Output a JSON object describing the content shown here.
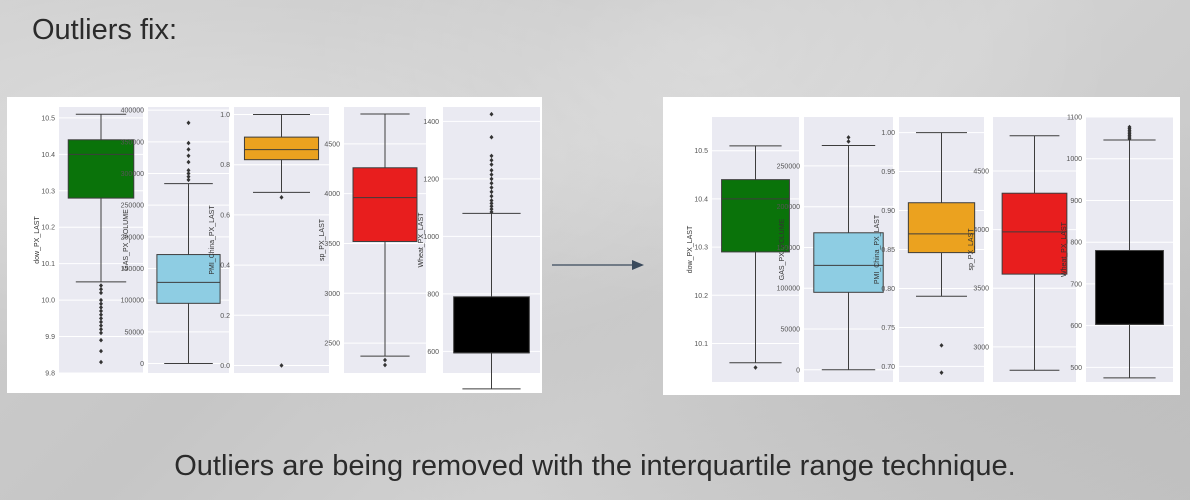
{
  "slide": {
    "title": "Outliers fix:",
    "caption": "Outliers are being removed with the interquartile range technique."
  },
  "colors": {
    "plot_background": "#eaeaf2",
    "grid": "#ffffff",
    "box_edge": "#3d3d3d",
    "arrow": "#3a4a5c"
  },
  "chart_data": [
    {
      "type": "boxplot",
      "subplots": [
        {
          "ylabel": "dow_PX_LAST",
          "color": "#0a730a",
          "ylim": [
            9.8,
            10.53
          ],
          "ticks": [
            {
              "v": 9.8,
              "t": "9.8"
            },
            {
              "v": 9.9,
              "t": "9.9"
            },
            {
              "v": 10.0,
              "t": "10.0"
            },
            {
              "v": 10.1,
              "t": "10.1"
            },
            {
              "v": 10.2,
              "t": "10.2"
            },
            {
              "v": 10.3,
              "t": "10.3"
            },
            {
              "v": 10.4,
              "t": "10.4"
            },
            {
              "v": 10.5,
              "t": "10.5"
            }
          ],
          "whisker_low": 10.05,
          "q1": 10.28,
          "median": 10.4,
          "q3": 10.44,
          "whisker_high": 10.51,
          "outliers": [
            10.04,
            10.03,
            10.02,
            10.0,
            9.99,
            9.98,
            9.97,
            9.96,
            9.95,
            9.94,
            9.93,
            9.92,
            9.91,
            9.89,
            9.86,
            9.83
          ]
        },
        {
          "ylabel": "GAS_PX_VOLUME",
          "color": "#8ecde3",
          "ylim": [
            -15000,
            405000
          ],
          "ticks": [
            {
              "v": 0,
              "t": "0"
            },
            {
              "v": 50000,
              "t": "50000"
            },
            {
              "v": 100000,
              "t": "100000"
            },
            {
              "v": 150000,
              "t": "150000"
            },
            {
              "v": 200000,
              "t": "200000"
            },
            {
              "v": 250000,
              "t": "250000"
            },
            {
              "v": 300000,
              "t": "300000"
            },
            {
              "v": 350000,
              "t": "350000"
            },
            {
              "v": 400000,
              "t": "400000"
            }
          ],
          "whisker_low": 0,
          "q1": 95000,
          "median": 128000,
          "q3": 172000,
          "whisker_high": 284000,
          "outliers": [
            290000,
            295000,
            300000,
            305000,
            318000,
            328000,
            338000,
            348000,
            380000
          ]
        },
        {
          "ylabel": "PMI_China_PX_LAST",
          "color": "#eba21f",
          "ylim": [
            -0.03,
            1.03
          ],
          "ticks": [
            {
              "v": 0.0,
              "t": "0.0"
            },
            {
              "v": 0.2,
              "t": "0.2"
            },
            {
              "v": 0.4,
              "t": "0.4"
            },
            {
              "v": 0.6,
              "t": "0.6"
            },
            {
              "v": 0.8,
              "t": "0.8"
            },
            {
              "v": 1.0,
              "t": "1.0"
            }
          ],
          "whisker_low": 0.69,
          "q1": 0.82,
          "median": 0.86,
          "q3": 0.91,
          "whisker_high": 1.0,
          "outliers": [
            0.67,
            0.0
          ]
        },
        {
          "ylabel": "sp_PX_LAST",
          "color": "#e81e1e",
          "ylim": [
            2200,
            4870
          ],
          "ticks": [
            {
              "v": 2500,
              "t": "2500"
            },
            {
              "v": 3000,
              "t": "3000"
            },
            {
              "v": 3500,
              "t": "3500"
            },
            {
              "v": 4000,
              "t": "4000"
            },
            {
              "v": 4500,
              "t": "4500"
            }
          ],
          "whisker_low": 2370,
          "q1": 3520,
          "median": 3960,
          "q3": 4260,
          "whisker_high": 4800,
          "outliers": [
            2330,
            2280
          ]
        },
        {
          "ylabel": "Wheat_PX_LAST",
          "color": "#000000",
          "ylim": [
            525,
            1450
          ],
          "ticks": [
            {
              "v": 600,
              "t": "600"
            },
            {
              "v": 800,
              "t": "800"
            },
            {
              "v": 1000,
              "t": "1000"
            },
            {
              "v": 1200,
              "t": "1200"
            },
            {
              "v": 1400,
              "t": "1400"
            }
          ],
          "whisker_low": 470,
          "q1": 595,
          "median": 595,
          "q3": 790,
          "whisker_high": 1080,
          "outliers": [
            1085,
            1095,
            1105,
            1115,
            1125,
            1140,
            1155,
            1170,
            1185,
            1200,
            1215,
            1230,
            1250,
            1265,
            1280,
            1345,
            1425
          ]
        }
      ]
    },
    {
      "type": "boxplot",
      "subplots": [
        {
          "ylabel": "dow_PX_LAST",
          "color": "#0a730a",
          "ylim": [
            10.02,
            10.57
          ],
          "ticks": [
            {
              "v": 10.1,
              "t": "10.1"
            },
            {
              "v": 10.2,
              "t": "10.2"
            },
            {
              "v": 10.3,
              "t": "10.3"
            },
            {
              "v": 10.4,
              "t": "10.4"
            },
            {
              "v": 10.5,
              "t": "10.5"
            }
          ],
          "whisker_low": 10.06,
          "q1": 10.29,
          "median": 10.4,
          "q3": 10.44,
          "whisker_high": 10.51,
          "outliers": [
            10.05
          ]
        },
        {
          "ylabel": "GAS_PX_VOLUME",
          "color": "#8ecde3",
          "ylim": [
            -15000,
            310000
          ],
          "ticks": [
            {
              "v": 0,
              "t": "0"
            },
            {
              "v": 50000,
              "t": "50000"
            },
            {
              "v": 100000,
              "t": "100000"
            },
            {
              "v": 150000,
              "t": "150000"
            },
            {
              "v": 200000,
              "t": "200000"
            },
            {
              "v": 250000,
              "t": "250000"
            }
          ],
          "whisker_low": 0,
          "q1": 95000,
          "median": 128000,
          "q3": 168000,
          "whisker_high": 275000,
          "outliers": [
            280000,
            285000
          ]
        },
        {
          "ylabel": "PMI_China_PX_LAST",
          "color": "#eba21f",
          "ylim": [
            0.68,
            1.02
          ],
          "ticks": [
            {
              "v": 0.7,
              "t": "0.70"
            },
            {
              "v": 0.75,
              "t": "0.75"
            },
            {
              "v": 0.8,
              "t": "0.80"
            },
            {
              "v": 0.85,
              "t": "0.85"
            },
            {
              "v": 0.9,
              "t": "0.90"
            },
            {
              "v": 0.95,
              "t": "0.95"
            },
            {
              "v": 1.0,
              "t": "1.00"
            }
          ],
          "whisker_low": 0.79,
          "q1": 0.846,
          "median": 0.87,
          "q3": 0.91,
          "whisker_high": 1.0,
          "outliers": [
            0.727,
            0.692
          ]
        },
        {
          "ylabel": "sp_PX_LAST",
          "color": "#e81e1e",
          "ylim": [
            2700,
            4960
          ],
          "ticks": [
            {
              "v": 3000,
              "t": "3000"
            },
            {
              "v": 3500,
              "t": "3500"
            },
            {
              "v": 4000,
              "t": "4000"
            },
            {
              "v": 4500,
              "t": "4500"
            }
          ],
          "whisker_low": 2800,
          "q1": 3620,
          "median": 3980,
          "q3": 4310,
          "whisker_high": 4800,
          "outliers": []
        },
        {
          "ylabel": "Wheat_PX_LAST",
          "color": "#000000",
          "ylim": [
            465,
            1100
          ],
          "ticks": [
            {
              "v": 500,
              "t": "500"
            },
            {
              "v": 600,
              "t": "600"
            },
            {
              "v": 700,
              "t": "700"
            },
            {
              "v": 800,
              "t": "800"
            },
            {
              "v": 900,
              "t": "900"
            },
            {
              "v": 1000,
              "t": "1000"
            },
            {
              "v": 1100,
              "t": "1100"
            }
          ],
          "whisker_low": 475,
          "q1": 603,
          "median": 603,
          "q3": 780,
          "whisker_high": 1045,
          "outliers": [
            1048,
            1052,
            1056,
            1060,
            1064,
            1068,
            1072,
            1076
          ]
        }
      ]
    }
  ]
}
